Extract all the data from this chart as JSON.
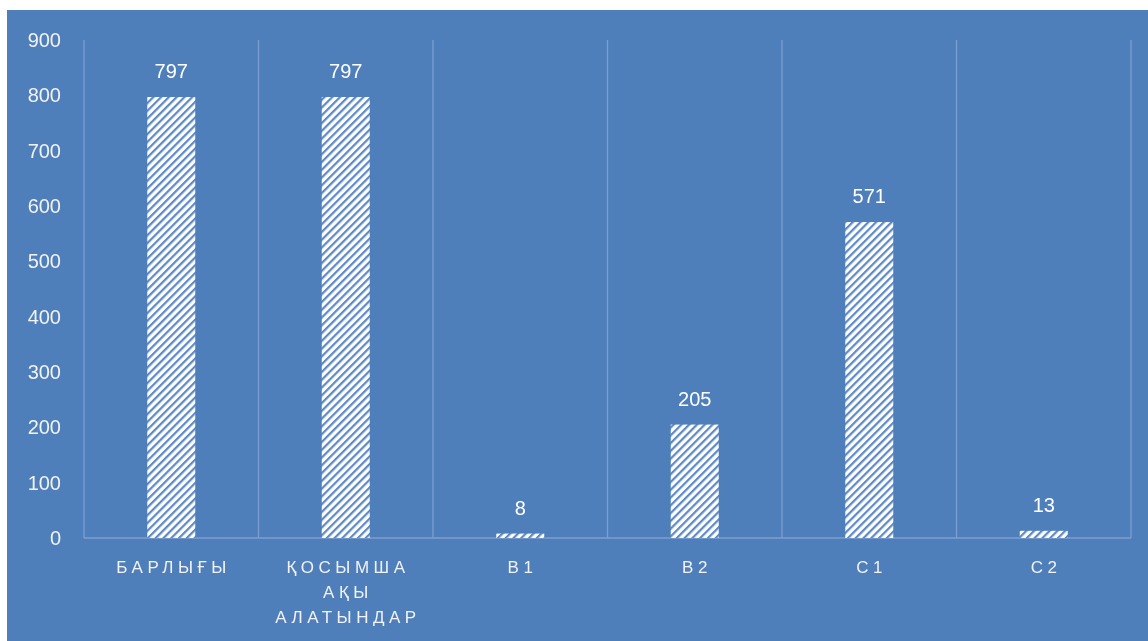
{
  "chart_data": {
    "type": "bar",
    "categories": [
      "БАРЛЫҒЫ",
      "ҚОСЫМША АҚЫ АЛАТЫНДАР",
      "B1",
      "B2",
      "C1",
      "C2"
    ],
    "values": [
      797,
      797,
      8,
      205,
      571,
      13
    ],
    "color": "#ffffff",
    "ylim": [
      0,
      900
    ],
    "yticks": [
      0,
      100,
      200,
      300,
      400,
      500,
      600,
      700,
      800,
      900
    ],
    "grid": "x",
    "data_labels": true
  }
}
